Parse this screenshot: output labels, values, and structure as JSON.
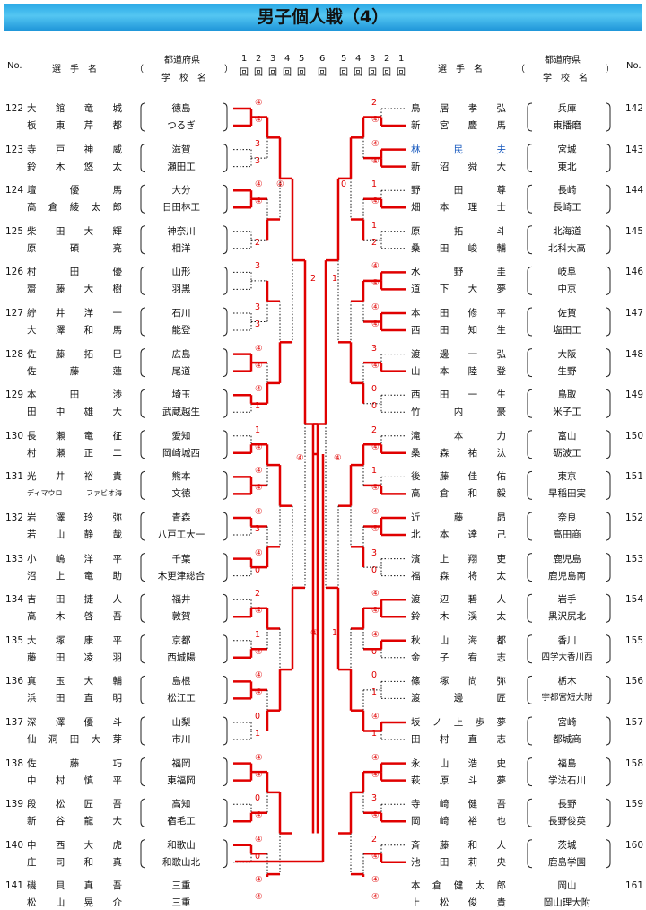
{
  "title": "男子個人戦（4）",
  "header": {
    "no": "No.",
    "player": "選　手　名",
    "paren_open": "（",
    "paren_close": "）",
    "pref": "都道府県",
    "school": "学　校　名",
    "rounds_left": [
      "1",
      "2",
      "3",
      "4",
      "5"
    ],
    "round6": "6",
    "rounds_right": [
      "5",
      "4",
      "3",
      "2",
      "1"
    ],
    "kai": "回"
  },
  "left": [
    {
      "no": "122",
      "p": [
        {
          "n": "大館竜城",
          "a": "徳島"
        },
        {
          "n": "板東芹都",
          "a": "つるぎ"
        }
      ]
    },
    {
      "no": "123",
      "p": [
        {
          "n": "寺戸神威",
          "a": "滋賀"
        },
        {
          "n": "鈴木悠太",
          "a": "瀬田工"
        }
      ]
    },
    {
      "no": "124",
      "p": [
        {
          "n": "壇優馬",
          "a": "大分"
        },
        {
          "n": "高倉綾太郎",
          "a": "日田林工"
        }
      ]
    },
    {
      "no": "125",
      "p": [
        {
          "n": "柴田大輝",
          "a": "神奈川"
        },
        {
          "n": "原碩亮",
          "a": "相洋"
        }
      ]
    },
    {
      "no": "126",
      "p": [
        {
          "n": "村田優",
          "a": "山形"
        },
        {
          "n": "齋藤大樹",
          "a": "羽黒"
        }
      ]
    },
    {
      "no": "127",
      "p": [
        {
          "n": "紵井洋一",
          "a": "石川"
        },
        {
          "n": "大澤和馬",
          "a": "能登"
        }
      ]
    },
    {
      "no": "128",
      "p": [
        {
          "n": "佐藤拓巳",
          "a": "広島"
        },
        {
          "n": "佐藤蓮",
          "a": "尾道"
        }
      ]
    },
    {
      "no": "129",
      "p": [
        {
          "n": "本田渉",
          "a": "埼玉"
        },
        {
          "n": "田中雄大",
          "a": "武蔵越生"
        }
      ]
    },
    {
      "no": "130",
      "p": [
        {
          "n": "長瀬竜征",
          "a": "愛知"
        },
        {
          "n": "村瀬正二",
          "a": "岡崎城西"
        }
      ]
    },
    {
      "no": "131",
      "p": [
        {
          "n": "光井裕貴",
          "a": "熊本"
        },
        {
          "n": "ディマウロ　ファビオ海",
          "a": "文徳"
        }
      ]
    },
    {
      "no": "132",
      "p": [
        {
          "n": "岩澤玲弥",
          "a": "青森"
        },
        {
          "n": "若山静哉",
          "a": "八戸工大一"
        }
      ]
    },
    {
      "no": "133",
      "p": [
        {
          "n": "小嶋洋平",
          "a": "千葉"
        },
        {
          "n": "沼上竜助",
          "a": "木更津総合"
        }
      ]
    },
    {
      "no": "134",
      "p": [
        {
          "n": "吉田捷人",
          "a": "福井"
        },
        {
          "n": "高木啓吾",
          "a": "敦賀"
        }
      ]
    },
    {
      "no": "135",
      "p": [
        {
          "n": "大塚康平",
          "a": "京都"
        },
        {
          "n": "藤田凌羽",
          "a": "西城陽"
        }
      ]
    },
    {
      "no": "136",
      "p": [
        {
          "n": "真玉大輔",
          "a": "島根"
        },
        {
          "n": "浜田直明",
          "a": "松江工"
        }
      ]
    },
    {
      "no": "137",
      "p": [
        {
          "n": "深澤優斗",
          "a": "山梨"
        },
        {
          "n": "仙洞田大芽",
          "a": "市川"
        }
      ]
    },
    {
      "no": "138",
      "p": [
        {
          "n": "佐藤巧",
          "a": "福岡"
        },
        {
          "n": "中村慎平",
          "a": "東福岡"
        }
      ]
    },
    {
      "no": "139",
      "p": [
        {
          "n": "段松匠吾",
          "a": "高知"
        },
        {
          "n": "新谷龍大",
          "a": "宿毛工"
        }
      ]
    },
    {
      "no": "140",
      "p": [
        {
          "n": "中西大虎",
          "a": "和歌山"
        },
        {
          "n": "庄司和真",
          "a": "和歌山北"
        }
      ]
    },
    {
      "no": "141",
      "p": [
        {
          "n": "磯貝真吾",
          "a": "三重"
        },
        {
          "n": "松山晃介",
          "a": "三重"
        }
      ]
    }
  ],
  "right": [
    {
      "no": "142",
      "p": [
        {
          "n": "鳥居孝弘",
          "a": "兵庫"
        },
        {
          "n": "新宮慶馬",
          "a": "東播磨"
        }
      ]
    },
    {
      "no": "143",
      "p": [
        {
          "n": "林民夫",
          "a": "宮城"
        },
        {
          "n": "新沼舜大",
          "a": "東北"
        }
      ]
    },
    {
      "no": "144",
      "p": [
        {
          "n": "野田尊",
          "a": "長崎"
        },
        {
          "n": "畑本理士",
          "a": "長崎工"
        }
      ]
    },
    {
      "no": "145",
      "p": [
        {
          "n": "原拓斗",
          "a": "北海道"
        },
        {
          "n": "桑田峻輔",
          "a": "北科大高"
        }
      ]
    },
    {
      "no": "146",
      "p": [
        {
          "n": "水野圭",
          "a": "岐阜"
        },
        {
          "n": "道下大夢",
          "a": "中京"
        }
      ]
    },
    {
      "no": "147",
      "p": [
        {
          "n": "本田修平",
          "a": "佐賀"
        },
        {
          "n": "西田知生",
          "a": "塩田工"
        }
      ]
    },
    {
      "no": "148",
      "p": [
        {
          "n": "渡邊一弘",
          "a": "大阪"
        },
        {
          "n": "山本陸登",
          "a": "生野"
        }
      ]
    },
    {
      "no": "149",
      "p": [
        {
          "n": "西田一生",
          "a": "鳥取"
        },
        {
          "n": "竹内豪",
          "a": "米子工"
        }
      ]
    },
    {
      "no": "150",
      "p": [
        {
          "n": "滝本力",
          "a": "富山"
        },
        {
          "n": "桑森祐汰",
          "a": "砺波工"
        }
      ]
    },
    {
      "no": "151",
      "p": [
        {
          "n": "後藤佳佑",
          "a": "東京"
        },
        {
          "n": "高倉和毅",
          "a": "早稲田実"
        }
      ]
    },
    {
      "no": "152",
      "p": [
        {
          "n": "近藤昴",
          "a": "奈良"
        },
        {
          "n": "北本達己",
          "a": "高田商"
        }
      ]
    },
    {
      "no": "153",
      "p": [
        {
          "n": "濱上翔吏",
          "a": "鹿児島"
        },
        {
          "n": "福森将太",
          "a": "鹿児島南"
        }
      ]
    },
    {
      "no": "154",
      "p": [
        {
          "n": "渡辺碧人",
          "a": "岩手"
        },
        {
          "n": "鈴木渓太",
          "a": "黒沢尻北"
        }
      ]
    },
    {
      "no": "155",
      "p": [
        {
          "n": "秋山海都",
          "a": "香川"
        },
        {
          "n": "金子宥志",
          "a": "四学大香川西"
        }
      ]
    },
    {
      "no": "156",
      "p": [
        {
          "n": "篠塚尚弥",
          "a": "栃木"
        },
        {
          "n": "渡邊匠",
          "a": "宇都宮短大附"
        }
      ]
    },
    {
      "no": "157",
      "p": [
        {
          "n": "坂ノ上歩夢",
          "a": "宮崎"
        },
        {
          "n": "田村直志",
          "a": "都城商"
        }
      ]
    },
    {
      "no": "158",
      "p": [
        {
          "n": "永山浩史",
          "a": "福島"
        },
        {
          "n": "萩原斗夢",
          "a": "学法石川"
        }
      ]
    },
    {
      "no": "159",
      "p": [
        {
          "n": "寺崎健吾",
          "a": "長野"
        },
        {
          "n": "岡崎裕也",
          "a": "長野俊英"
        }
      ]
    },
    {
      "no": "160",
      "p": [
        {
          "n": "斉藤和人",
          "a": "茨城"
        },
        {
          "n": "池田莉央",
          "a": "鹿島学園"
        }
      ]
    },
    {
      "no": "161",
      "p": [
        {
          "n": "本倉健太郎",
          "a": "岡山"
        },
        {
          "n": "上松俊貴",
          "a": "岡山理大附"
        }
      ]
    }
  ],
  "scores": {
    "left": [
      [
        "④",
        "④",
        "",
        ""
      ],
      [
        "3",
        "3",
        "",
        ""
      ],
      [
        "④",
        "④",
        "0",
        ""
      ],
      [
        "",
        "2",
        "",
        ""
      ],
      [
        "3",
        "",
        "",
        ""
      ],
      [
        "3",
        "3",
        "",
        ""
      ],
      [
        "④",
        "④",
        "",
        ""
      ],
      [
        "④",
        "1",
        "",
        ""
      ],
      [
        "1",
        "④",
        "",
        ""
      ],
      [
        "④",
        "④",
        "",
        ""
      ],
      [
        "④",
        "3",
        "",
        ""
      ],
      [
        "④",
        "0",
        "",
        ""
      ],
      [
        "2",
        "④",
        "",
        ""
      ],
      [
        "1",
        "④",
        "",
        ""
      ],
      [
        "④",
        "④",
        "",
        ""
      ],
      [
        "0",
        "1",
        "",
        ""
      ],
      [
        "④",
        "④",
        "",
        ""
      ],
      [
        "0",
        "④",
        "",
        ""
      ],
      [
        "④",
        "0",
        "",
        ""
      ],
      [
        "④",
        "④",
        "",
        ""
      ]
    ],
    "mid": [
      "2",
      "1",
      "④",
      "1",
      "④",
      "0",
      "④",
      "④"
    ],
    "right": [
      [
        "2",
        "④",
        "",
        ""
      ],
      [
        "④",
        "④",
        "",
        ""
      ],
      [
        "1",
        "④",
        "",
        ""
      ],
      [
        "1",
        "2",
        "",
        ""
      ],
      [
        "④",
        "④",
        "",
        ""
      ],
      [
        "④",
        "④",
        "",
        ""
      ],
      [
        "3",
        "④",
        "",
        ""
      ],
      [
        "0",
        "0",
        "",
        ""
      ],
      [
        "2",
        "④",
        "",
        ""
      ],
      [
        "1",
        "④",
        "",
        ""
      ],
      [
        "④",
        "④",
        "",
        ""
      ],
      [
        "3",
        "0",
        "",
        ""
      ],
      [
        "④",
        "④",
        "",
        ""
      ],
      [
        "④",
        "0",
        "",
        ""
      ],
      [
        "0",
        "1",
        "",
        ""
      ],
      [
        "④",
        "1",
        "",
        ""
      ],
      [
        "④",
        "④",
        "",
        ""
      ],
      [
        "3",
        "④",
        "",
        ""
      ],
      [
        "2",
        "④",
        "",
        ""
      ],
      [
        "④",
        "④",
        "",
        ""
      ]
    ]
  },
  "colors": {
    "win": "#e00000",
    "lose": "#111111",
    "title_bg": "#3fb8ee",
    "highlight": "#1a5bbf"
  }
}
